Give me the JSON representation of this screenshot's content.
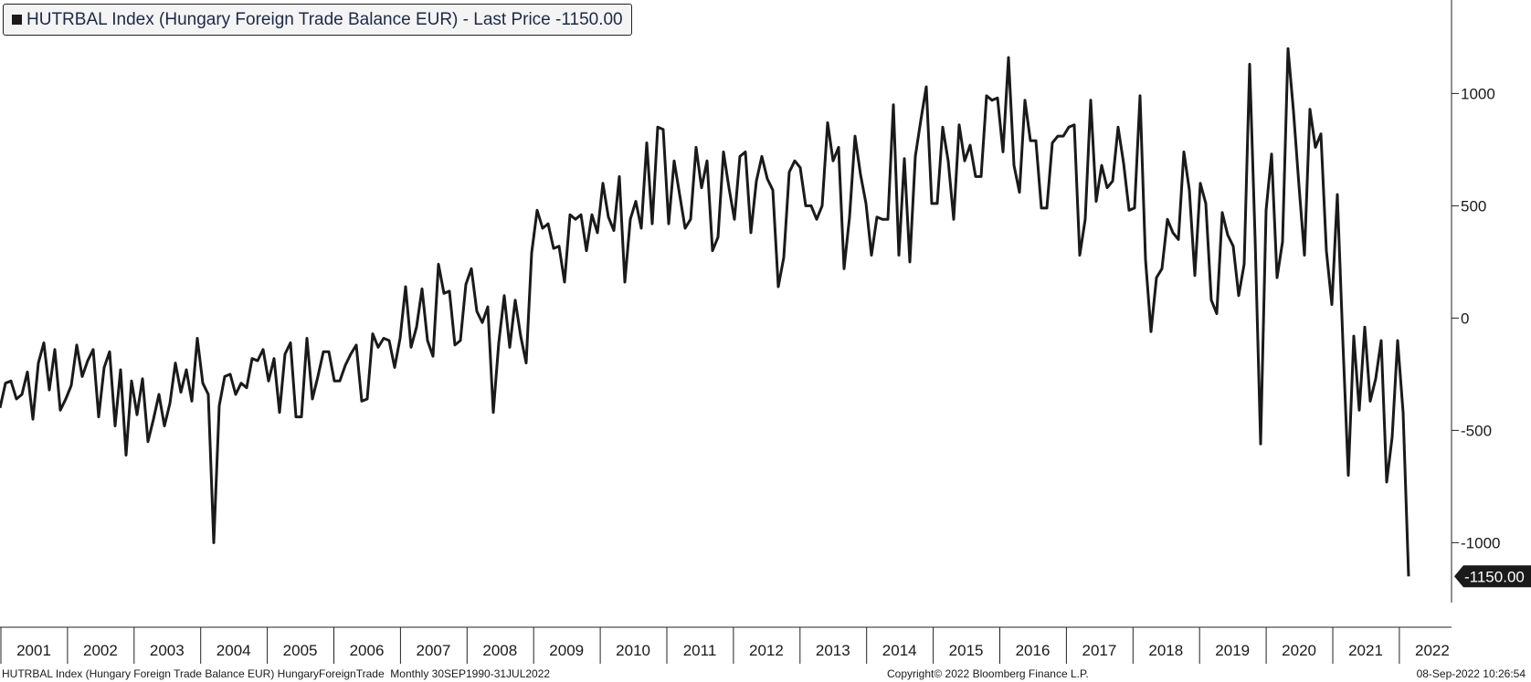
{
  "legend": {
    "text": "HUTRBAL Index (Hungary Foreign Trade Balance EUR) - Last Price -1150.00",
    "swatch_color": "#1a1a1a"
  },
  "footer": {
    "left": "HUTRBAL Index (Hungary Foreign Trade Balance EUR) HungaryForeignTrade  Monthly 30SEP1990-31JUL2022",
    "center": "Copyright© 2022 Bloomberg Finance L.P.",
    "right": "08-Sep-2022 10:26:54"
  },
  "chart_data": {
    "type": "line",
    "title": "",
    "xlabel": "",
    "ylabel": "",
    "x_range": [
      "2001-01",
      "2022-07"
    ],
    "ylim": [
      -1300,
      1400
    ],
    "y_ticks": [
      1000,
      500,
      0,
      -500,
      -1000
    ],
    "x_tick_labels": [
      "2001",
      "2002",
      "2003",
      "2004",
      "2005",
      "2006",
      "2007",
      "2008",
      "2009",
      "2010",
      "2011",
      "2012",
      "2013",
      "2014",
      "2015",
      "2016",
      "2017",
      "2018",
      "2019",
      "2020",
      "2021",
      "2022"
    ],
    "last_value_label": "-1150.00",
    "line_color": "#1a1a1a",
    "grid": false,
    "series": [
      {
        "name": "HUTRBAL Index",
        "start": "2001-01",
        "frequency": "monthly",
        "values": [
          -400,
          -290,
          -280,
          -360,
          -340,
          -240,
          -450,
          -200,
          -110,
          -320,
          -140,
          -410,
          -360,
          -300,
          -120,
          -260,
          -190,
          -140,
          -440,
          -220,
          -150,
          -480,
          -230,
          -610,
          -280,
          -430,
          -270,
          -550,
          -450,
          -340,
          -480,
          -380,
          -200,
          -330,
          -230,
          -370,
          -90,
          -290,
          -340,
          -1000,
          -390,
          -260,
          -250,
          -340,
          -290,
          -310,
          -180,
          -190,
          -140,
          -280,
          -180,
          -420,
          -160,
          -110,
          -440,
          -440,
          -90,
          -360,
          -260,
          -150,
          -150,
          -280,
          -280,
          -210,
          -160,
          -120,
          -370,
          -360,
          -70,
          -130,
          -90,
          -100,
          -220,
          -90,
          140,
          -130,
          -40,
          130,
          -100,
          -170,
          240,
          110,
          120,
          -120,
          -100,
          150,
          220,
          30,
          -20,
          50,
          -420,
          -110,
          100,
          -130,
          80,
          -80,
          -200,
          290,
          480,
          400,
          420,
          310,
          320,
          160,
          460,
          440,
          460,
          300,
          460,
          380,
          600,
          450,
          390,
          630,
          160,
          440,
          520,
          400,
          780,
          420,
          850,
          840,
          420,
          700,
          550,
          400,
          440,
          760,
          580,
          700,
          300,
          360,
          740,
          580,
          440,
          720,
          740,
          380,
          610,
          720,
          620,
          570,
          140,
          270,
          650,
          700,
          670,
          500,
          500,
          440,
          500,
          870,
          700,
          760,
          220,
          450,
          810,
          640,
          510,
          280,
          450,
          440,
          440,
          950,
          280,
          710,
          250,
          720,
          880,
          1030,
          510,
          510,
          850,
          700,
          440,
          860,
          700,
          770,
          630,
          630,
          990,
          970,
          980,
          740,
          1160,
          680,
          560,
          970,
          790,
          790,
          490,
          490,
          780,
          810,
          810,
          850,
          860,
          280,
          440,
          970,
          520,
          680,
          580,
          610,
          850,
          690,
          480,
          490,
          990,
          260,
          -60,
          180,
          220,
          440,
          380,
          350,
          740,
          570,
          190,
          600,
          510,
          80,
          20,
          470,
          370,
          320,
          100,
          240,
          1130,
          350,
          -560,
          480,
          730,
          180,
          340,
          1200,
          920,
          590,
          280,
          930,
          760,
          820,
          300,
          60,
          550,
          -100,
          -700,
          -80,
          -410,
          -40,
          -370,
          -270,
          -100,
          -730,
          -530,
          -100,
          -420,
          -1150
        ]
      }
    ]
  }
}
